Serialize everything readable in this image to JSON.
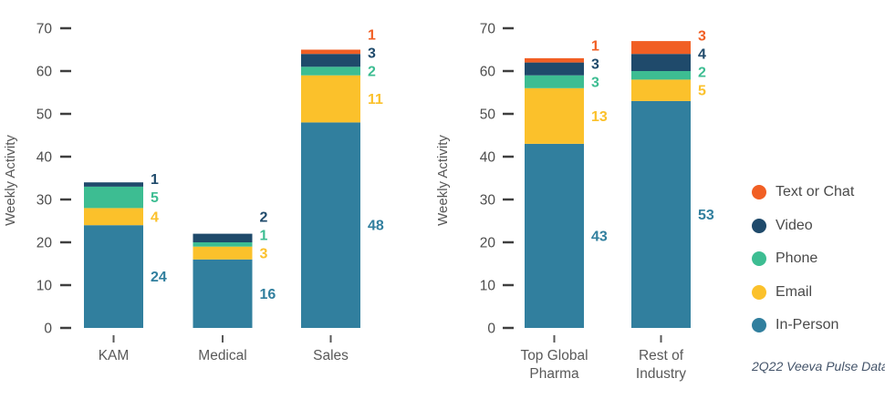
{
  "footer": "2Q22 Veeva Pulse Data",
  "legend": {
    "items": [
      {
        "label": "Text or Chat",
        "color": "#F15F24"
      },
      {
        "label": "Video",
        "color": "#1F4A6B"
      },
      {
        "label": "Phone",
        "color": "#3DBD92"
      },
      {
        "label": "Email",
        "color": "#FBC12B"
      },
      {
        "label": "In-Person",
        "color": "#317F9E"
      }
    ]
  },
  "chart_data": [
    {
      "type": "bar",
      "stacked": true,
      "title": "",
      "xlabel": "",
      "ylabel": "Weekly Activity",
      "ylim": [
        0,
        70
      ],
      "yticks": [
        0,
        10,
        20,
        30,
        40,
        50,
        60,
        70
      ],
      "grid": false,
      "legend_position": "right-shared",
      "categories": [
        "KAM",
        "Medical",
        "Sales"
      ],
      "series": [
        {
          "name": "In-Person",
          "color": "#317F9E",
          "values": [
            24,
            16,
            48
          ]
        },
        {
          "name": "Email",
          "color": "#FBC12B",
          "values": [
            4,
            3,
            11
          ]
        },
        {
          "name": "Phone",
          "color": "#3DBD92",
          "values": [
            5,
            1,
            2
          ]
        },
        {
          "name": "Video",
          "color": "#1F4A6B",
          "values": [
            1,
            2,
            3
          ]
        },
        {
          "name": "Text or Chat",
          "color": "#F15F24",
          "values": [
            0,
            0,
            1
          ]
        }
      ]
    },
    {
      "type": "bar",
      "stacked": true,
      "title": "",
      "xlabel": "",
      "ylabel": "Weekly Activity",
      "ylim": [
        0,
        70
      ],
      "yticks": [
        0,
        10,
        20,
        30,
        40,
        50,
        60,
        70
      ],
      "grid": false,
      "legend_position": "right-shared",
      "categories": [
        "Top Global\nPharma",
        "Rest of\nIndustry"
      ],
      "series": [
        {
          "name": "In-Person",
          "color": "#317F9E",
          "values": [
            43,
            53
          ]
        },
        {
          "name": "Email",
          "color": "#FBC12B",
          "values": [
            13,
            5
          ]
        },
        {
          "name": "Phone",
          "color": "#3DBD92",
          "values": [
            3,
            2
          ]
        },
        {
          "name": "Video",
          "color": "#1F4A6B",
          "values": [
            3,
            4
          ]
        },
        {
          "name": "Text or Chat",
          "color": "#F15F24",
          "values": [
            1,
            3
          ]
        }
      ]
    }
  ]
}
